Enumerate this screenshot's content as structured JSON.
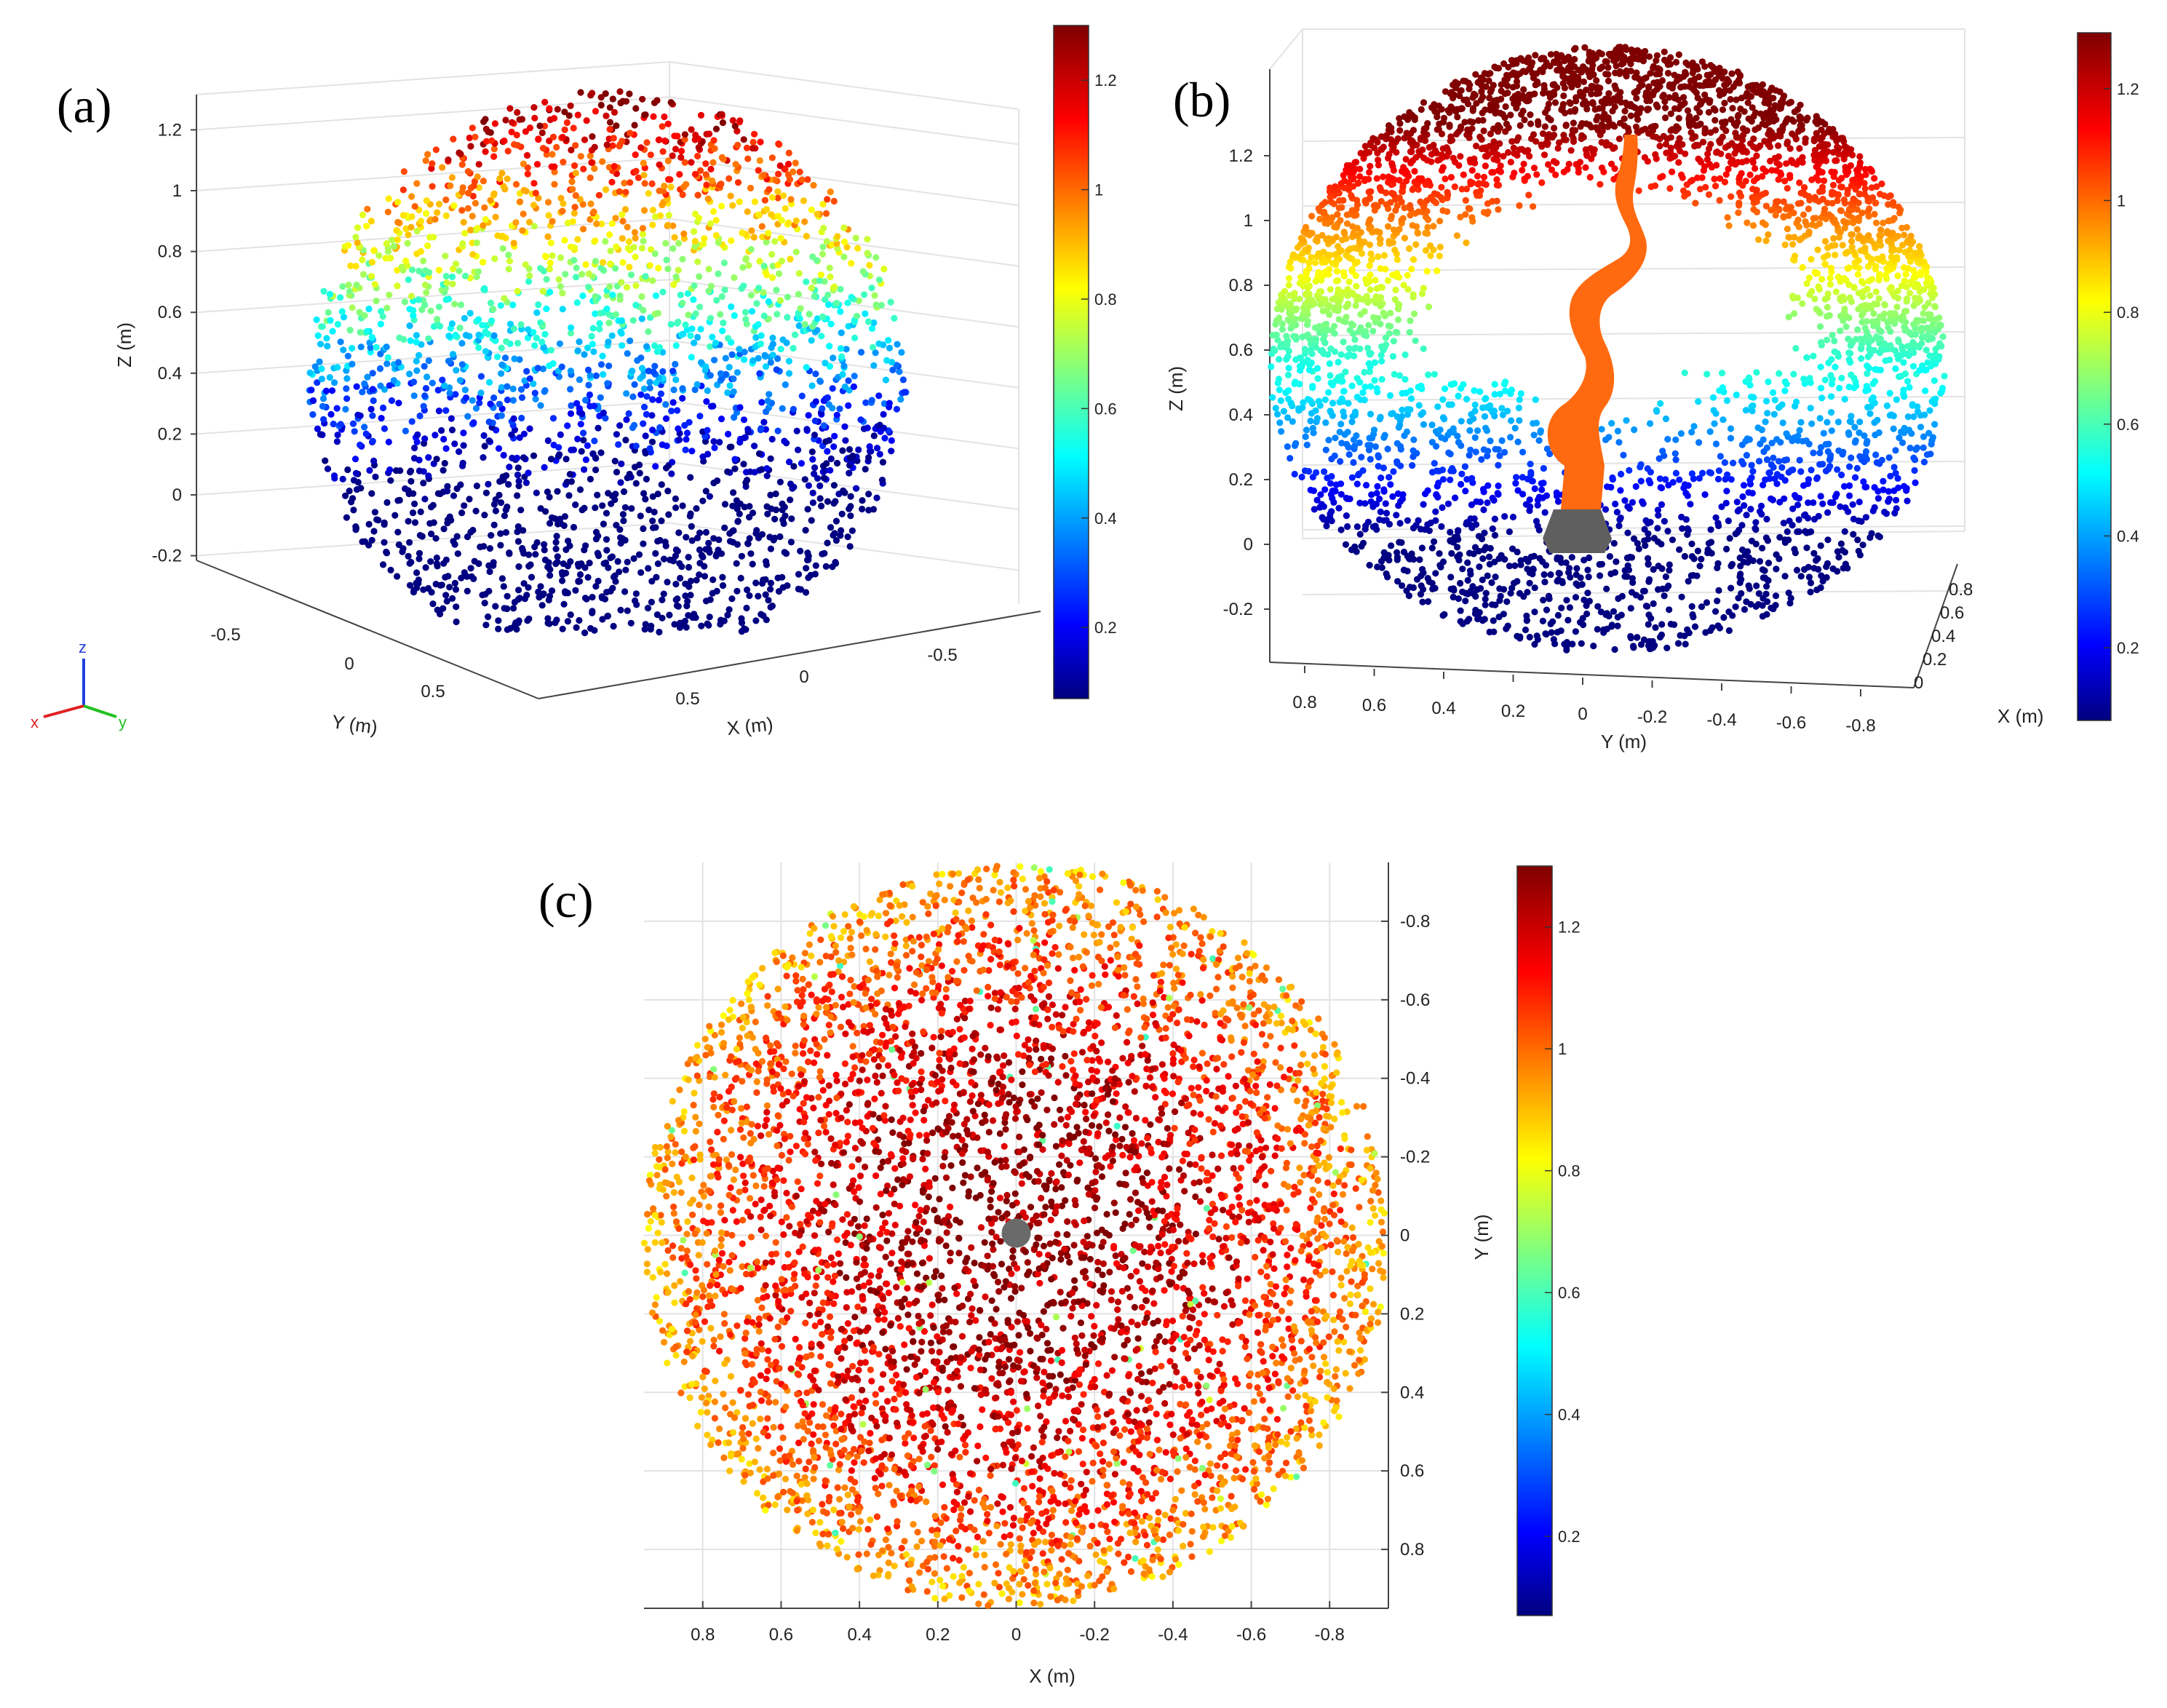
{
  "figure": {
    "colormap": "jet",
    "colors": {
      "background": "#ffffff",
      "robot_links": "#ff6a10",
      "robot_base": "#5f5f5f"
    }
  },
  "chart_data": [
    {
      "panel": "(a)",
      "type": "scatter",
      "view": "3d-isometric",
      "shape": "sphere",
      "xlabel": "X (m)",
      "ylabel": "Y (m)",
      "zlabel": "Z (m)",
      "x_ticks": [
        "0.5",
        "0",
        "-0.5"
      ],
      "y_ticks": [
        "-0.5",
        "0",
        "0.5"
      ],
      "z_ticks": [
        "1.2",
        "1",
        "0.8",
        "0.6",
        "0.4",
        "0.2",
        "0",
        "-0.2"
      ],
      "zlim": [
        -0.3,
        1.3
      ],
      "center": [
        0,
        0,
        0.33
      ],
      "radius": 0.95,
      "color_variable": "z",
      "colorbar": {
        "ticks": [
          "1.2",
          "1",
          "0.8",
          "0.6",
          "0.4",
          "0.2"
        ],
        "range": [
          0.07,
          1.3
        ]
      },
      "axis_triad": {
        "labels": [
          "x",
          "y",
          "z"
        ],
        "colors": {
          "x": "#e02020",
          "y": "#20c020",
          "z": "#2040e0"
        }
      }
    },
    {
      "panel": "(b)",
      "type": "scatter",
      "view": "3d-side",
      "shape": "hemisphere-shell",
      "xlabel": "X (m)",
      "ylabel": "Y (m)",
      "zlabel": "Z (m)",
      "x_ticks": [
        "0.8",
        "0.6",
        "0.4",
        "0.2",
        "0"
      ],
      "y_ticks": [
        "0.8",
        "0.6",
        "0.4",
        "0.2",
        "0",
        "-0.2",
        "-0.4",
        "-0.6",
        "-0.8"
      ],
      "z_ticks": [
        "1.2",
        "1",
        "0.8",
        "0.6",
        "0.4",
        "0.2",
        "0",
        "-0.2"
      ],
      "zlim": [
        -0.3,
        1.3
      ],
      "center": [
        0,
        0,
        0.33
      ],
      "radius": 0.95,
      "color_variable": "z",
      "robot": "serial-arm",
      "colorbar": {
        "ticks": [
          "1.2",
          "1",
          "0.8",
          "0.6",
          "0.4",
          "0.2"
        ],
        "range": [
          0.07,
          1.3
        ]
      }
    },
    {
      "panel": "(c)",
      "type": "scatter",
      "view": "top-down",
      "shape": "disk",
      "xlabel": "X (m)",
      "ylabel": "Y (m)",
      "x_ticks": [
        "0.8",
        "0.6",
        "0.4",
        "0.2",
        "0",
        "-0.2",
        "-0.4",
        "-0.6",
        "-0.8"
      ],
      "y_ticks": [
        "-0.8",
        "-0.6",
        "-0.4",
        "-0.2",
        "0",
        "0.2",
        "0.4",
        "0.6",
        "0.8"
      ],
      "xlim": [
        0.95,
        -0.95
      ],
      "ylim": [
        -0.95,
        0.95
      ],
      "radius": 0.95,
      "color_variable": "z",
      "colorbar": {
        "ticks": [
          "1.2",
          "1",
          "0.8",
          "0.6",
          "0.4",
          "0.2"
        ],
        "range": [
          0.07,
          1.3
        ]
      }
    }
  ]
}
